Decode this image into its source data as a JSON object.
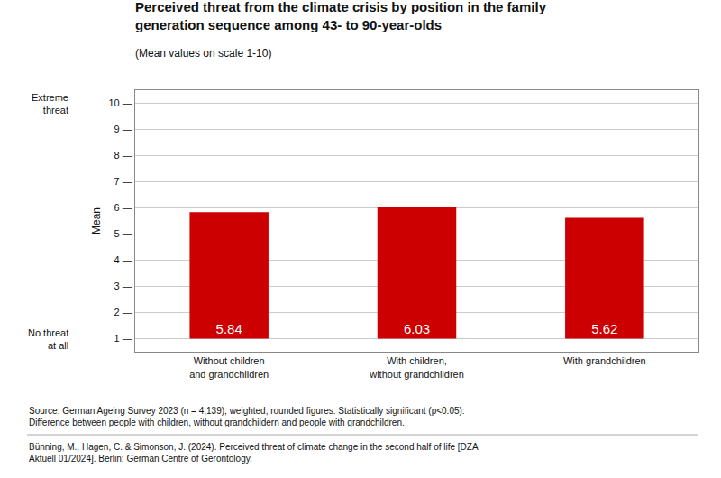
{
  "chart_data": {
    "type": "bar",
    "title": "Perceived threat from the climate crisis by position in the family\ngeneration sequence among 43- to 90-year-olds",
    "subtitle": "(Mean values on scale 1-10)",
    "categories": [
      "Without children\nand grandchildren",
      "With children,\nwithout grandchildren",
      "With grandchildren"
    ],
    "values": [
      5.84,
      6.03,
      5.62
    ],
    "value_labels": [
      "5.84",
      "6.03",
      "5.62"
    ],
    "data_labels": true,
    "color": "#cc0000",
    "ylabel": "Mean",
    "ylim": [
      0.5,
      10.5
    ],
    "yticks": [
      {
        "value": 1,
        "label": "1 —"
      },
      {
        "value": 2,
        "label": "2 —"
      },
      {
        "value": 3,
        "label": "3 —"
      },
      {
        "value": 4,
        "label": "4 —"
      },
      {
        "value": 5,
        "label": "5 —"
      },
      {
        "value": 6,
        "label": "6 —"
      },
      {
        "value": 7,
        "label": "7 —"
      },
      {
        "value": 8,
        "label": "8 —"
      },
      {
        "value": 9,
        "label": "9 —"
      },
      {
        "value": 10,
        "label": "10 —"
      }
    ],
    "grid": true,
    "annotations": [
      {
        "text": "Extreme\nthreat",
        "y": 10
      },
      {
        "text": "No threat\nat all",
        "y": 1
      }
    ],
    "source": "Source: German Ageing Survey 2023 (n = 4,139), weighted, rounded figures. Statistically significant (p<0.05):\nDifference between people with children, without grandchildern and people with grandchildren.",
    "citation": "Bünning, M., Hagen, C. & Simonson, J. (2024). Perceived threat of climate change in the second half of life [DZA\nAktuell 01/2024]. Berlin: German Centre of Gerontology."
  }
}
